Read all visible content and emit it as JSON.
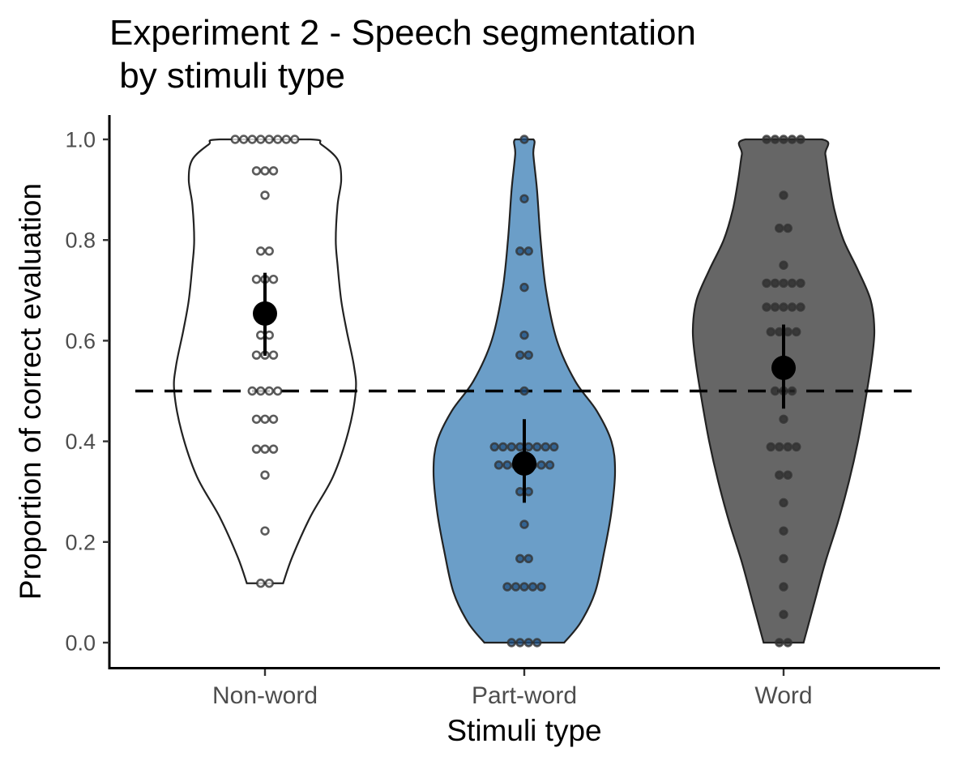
{
  "chart_data": {
    "type": "violin",
    "title": [
      "Experiment 2 - Speech segmentation",
      " by stimuli type"
    ],
    "xlabel": "Stimuli type",
    "ylabel": "Proportion of correct evaluation",
    "ylim": [
      0,
      1
    ],
    "yticks": [
      "0.0",
      "0.2",
      "0.4",
      "0.6",
      "0.8",
      "1.0"
    ],
    "yticks_values": [
      0,
      0.2,
      0.4,
      0.6,
      0.8,
      1.0
    ],
    "categories": [
      "Non-word",
      "Part-word",
      "Word"
    ],
    "reference_line": 0.5,
    "grid": false,
    "legend": "none",
    "groups": [
      {
        "name": "Non-word",
        "fill": "#ffffff",
        "dot_fill": "#ffffff",
        "mean": 0.654,
        "ci": [
          0.57,
          0.735
        ],
        "violin_range": [
          0.118,
          1.0
        ],
        "violin_profile": [
          [
            0.118,
            0.2
          ],
          [
            0.17,
            0.3
          ],
          [
            0.25,
            0.5
          ],
          [
            0.33,
            0.75
          ],
          [
            0.42,
            0.92
          ],
          [
            0.5,
            1.0
          ],
          [
            0.55,
            0.98
          ],
          [
            0.62,
            0.9
          ],
          [
            0.68,
            0.84
          ],
          [
            0.75,
            0.8
          ],
          [
            0.8,
            0.78
          ],
          [
            0.87,
            0.8
          ],
          [
            0.92,
            0.84
          ],
          [
            0.96,
            0.8
          ],
          [
            0.99,
            0.62
          ],
          [
            1.0,
            0.5
          ]
        ],
        "points": [
          1,
          1,
          1,
          1,
          1,
          1,
          1,
          1,
          0.9375,
          0.9375,
          0.9375,
          0.889,
          0.778,
          0.778,
          0.722,
          0.722,
          0.722,
          0.667,
          0.611,
          0.611,
          0.5714,
          0.5714,
          0.5714,
          0.5,
          0.5,
          0.5,
          0.5,
          0.444,
          0.444,
          0.444,
          0.3846,
          0.3846,
          0.3846,
          0.333,
          0.222,
          0.118,
          0.118
        ]
      },
      {
        "name": "Part-word",
        "fill": "#6b9ec8",
        "dot_fill": "#1f4f80",
        "mean": 0.356,
        "ci": [
          0.278,
          0.444
        ],
        "violin_range": [
          0.0,
          1.0
        ],
        "violin_profile": [
          [
            0.0,
            0.44
          ],
          [
            0.04,
            0.62
          ],
          [
            0.1,
            0.78
          ],
          [
            0.18,
            0.88
          ],
          [
            0.26,
            0.96
          ],
          [
            0.34,
            1.0
          ],
          [
            0.4,
            0.96
          ],
          [
            0.46,
            0.8
          ],
          [
            0.52,
            0.56
          ],
          [
            0.6,
            0.36
          ],
          [
            0.7,
            0.24
          ],
          [
            0.8,
            0.18
          ],
          [
            0.9,
            0.14
          ],
          [
            0.97,
            0.1
          ],
          [
            1.0,
            0.1
          ]
        ],
        "points": [
          1,
          0.882,
          0.778,
          0.778,
          0.7059,
          0.611,
          0.5714,
          0.5714,
          0.5,
          0.389,
          0.389,
          0.389,
          0.389,
          0.389,
          0.389,
          0.389,
          0.389,
          0.3529,
          0.3529,
          0.3529,
          0.3529,
          0.3529,
          0.3529,
          0.3529,
          0.3,
          0.3,
          0.235,
          0.167,
          0.167,
          0.111,
          0.111,
          0.111,
          0.111,
          0.111,
          0.0,
          0.0,
          0.0,
          0.0
        ]
      },
      {
        "name": "Word",
        "fill": "#666666",
        "dot_fill": "#2b2b2b",
        "mean": 0.546,
        "ci": [
          0.465,
          0.632
        ],
        "violin_range": [
          0.0,
          1.0
        ],
        "violin_profile": [
          [
            0.0,
            0.22
          ],
          [
            0.08,
            0.34
          ],
          [
            0.16,
            0.46
          ],
          [
            0.24,
            0.6
          ],
          [
            0.32,
            0.72
          ],
          [
            0.4,
            0.82
          ],
          [
            0.48,
            0.9
          ],
          [
            0.56,
            0.97
          ],
          [
            0.62,
            1.0
          ],
          [
            0.68,
            0.96
          ],
          [
            0.74,
            0.82
          ],
          [
            0.8,
            0.66
          ],
          [
            0.86,
            0.56
          ],
          [
            0.92,
            0.5
          ],
          [
            0.97,
            0.46
          ],
          [
            1.0,
            0.42
          ]
        ],
        "points": [
          1,
          1,
          1,
          1,
          1,
          0.889,
          0.8235,
          0.8235,
          0.75,
          0.7143,
          0.7143,
          0.7143,
          0.7143,
          0.7143,
          0.6667,
          0.6667,
          0.6667,
          0.6667,
          0.6667,
          0.6176,
          0.6176,
          0.6176,
          0.6176,
          0.5,
          0.5,
          0.5,
          0.444,
          0.389,
          0.389,
          0.389,
          0.389,
          0.333,
          0.333,
          0.278,
          0.222,
          0.167,
          0.111,
          0.056,
          0.0,
          0.0
        ]
      }
    ]
  }
}
